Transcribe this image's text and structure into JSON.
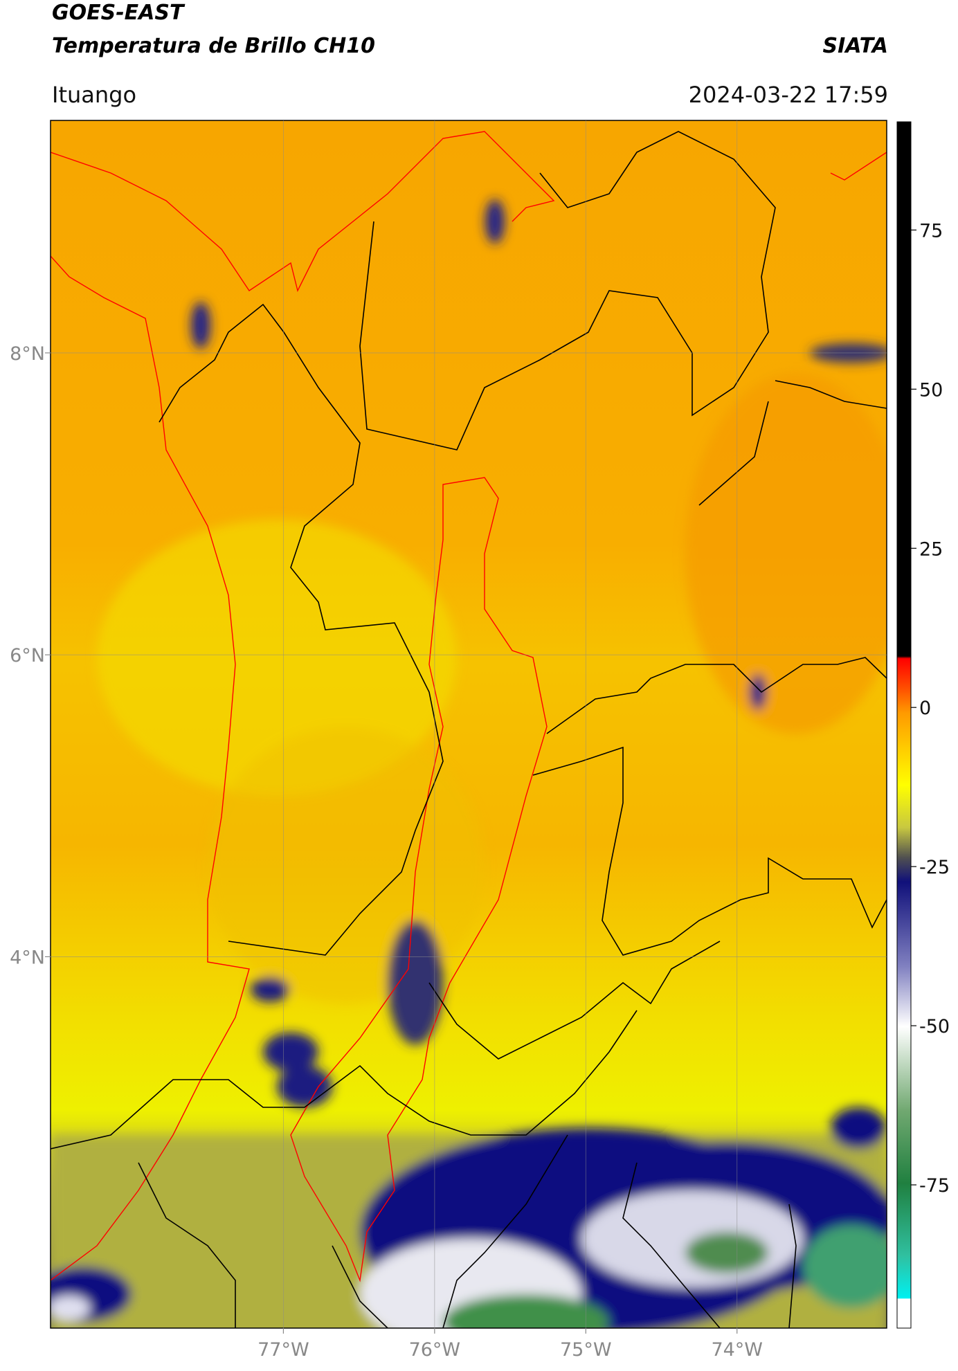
{
  "header": {
    "title": "GOES-EAST",
    "subtitle": "Temperatura de Brillo CH10",
    "brand": "SIATA",
    "location": "Ituango",
    "timestamp": "2024-03-22 17:59"
  },
  "map": {
    "xlim": [
      -78.54,
      -73.01
    ],
    "ylim": [
      1.54,
      9.54
    ],
    "xticks": [
      {
        "value": -77,
        "label": "77°W"
      },
      {
        "value": -76,
        "label": "76°W"
      },
      {
        "value": -75,
        "label": "75°W"
      },
      {
        "value": -74,
        "label": "74°W"
      }
    ],
    "yticks": [
      {
        "value": 8,
        "label": "8°N"
      },
      {
        "value": 6,
        "label": "6°N"
      },
      {
        "value": 4,
        "label": "4°N"
      }
    ],
    "grid": true
  },
  "colorbar": {
    "clim": [
      -97.5,
      92
    ],
    "ticks": [
      75,
      50,
      25,
      0,
      -25,
      -50,
      -75
    ]
  }
}
